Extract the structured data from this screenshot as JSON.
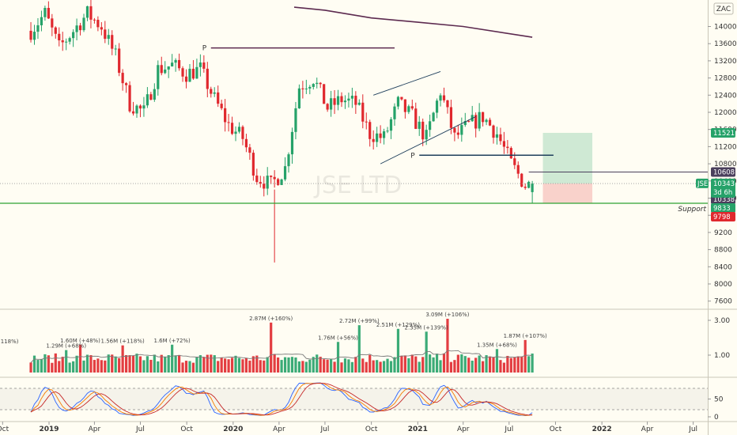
{
  "chart_data": {
    "type": "candlestick",
    "watermark": "JSE LTD",
    "corner_label": "ZAC",
    "y_axis": {
      "ticks": [
        7600,
        8000,
        8400,
        8800,
        9200,
        9600,
        10000,
        10400,
        10800,
        11200,
        11600,
        12000,
        12400,
        12800,
        13200,
        13600,
        14000
      ],
      "range": [
        7300,
        14400
      ]
    },
    "x_axis": {
      "ticks": [
        {
          "label": "Oct",
          "date": "2018-10-01"
        },
        {
          "label": "2019",
          "date": "2019-01-01"
        },
        {
          "label": "Apr",
          "date": "2019-04-01"
        },
        {
          "label": "Jul",
          "date": "2019-07-01"
        },
        {
          "label": "Oct",
          "date": "2019-10-01"
        },
        {
          "label": "2020",
          "date": "2020-01-01"
        },
        {
          "label": "Apr",
          "date": "2020-04-01"
        },
        {
          "label": "Jul",
          "date": "2020-07-01"
        },
        {
          "label": "Oct",
          "date": "2020-10-01"
        },
        {
          "label": "2021",
          "date": "2021-01-01"
        },
        {
          "label": "Apr",
          "date": "2021-04-01"
        },
        {
          "label": "Jul",
          "date": "2021-07-01"
        },
        {
          "label": "Oct",
          "date": "2021-10-01"
        },
        {
          "label": "2022",
          "date": "2022-01-01"
        },
        {
          "label": "Apr",
          "date": "2022-04-01"
        },
        {
          "label": "Jul",
          "date": "2022-07-01"
        }
      ]
    },
    "candle_path": [
      {
        "date": "2018-11-26",
        "close": 13900
      },
      {
        "date": "2018-12-24",
        "close": 14300
      },
      {
        "date": "2019-01-21",
        "close": 13500
      },
      {
        "date": "2019-02-18",
        "close": 13900
      },
      {
        "date": "2019-03-18",
        "close": 14300
      },
      {
        "date": "2019-04-15",
        "close": 14000
      },
      {
        "date": "2019-05-13",
        "close": 13300
      },
      {
        "date": "2019-06-10",
        "close": 12200
      },
      {
        "date": "2019-07-08",
        "close": 12000
      },
      {
        "date": "2019-08-05",
        "close": 13000
      },
      {
        "date": "2019-09-02",
        "close": 13100
      },
      {
        "date": "2019-09-30",
        "close": 12900
      },
      {
        "date": "2019-10-28",
        "close": 13000
      },
      {
        "date": "2019-11-25",
        "close": 12300
      },
      {
        "date": "2019-12-23",
        "close": 11700
      },
      {
        "date": "2020-01-20",
        "close": 11400
      },
      {
        "date": "2020-02-17",
        "close": 10500
      },
      {
        "date": "2020-03-16",
        "close": 10300
      },
      {
        "date": "2020-04-13",
        "close": 10700
      },
      {
        "date": "2020-05-11",
        "close": 12600
      },
      {
        "date": "2020-06-08",
        "close": 12800
      },
      {
        "date": "2020-07-06",
        "close": 12100
      },
      {
        "date": "2020-08-03",
        "close": 12300
      },
      {
        "date": "2020-08-31",
        "close": 12200
      },
      {
        "date": "2020-09-28",
        "close": 11500
      },
      {
        "date": "2020-10-26",
        "close": 11400
      },
      {
        "date": "2020-11-23",
        "close": 12200
      },
      {
        "date": "2020-12-21",
        "close": 11900
      },
      {
        "date": "2021-01-18",
        "close": 11400
      },
      {
        "date": "2021-02-15",
        "close": 12500
      },
      {
        "date": "2021-03-15",
        "close": 11400
      },
      {
        "date": "2021-04-12",
        "close": 11700
      },
      {
        "date": "2021-05-10",
        "close": 11900
      },
      {
        "date": "2021-06-07",
        "close": 11500
      },
      {
        "date": "2021-07-05",
        "close": 10800
      },
      {
        "date": "2021-08-02",
        "close": 10300
      },
      {
        "date": "2021-08-16",
        "close": 10340
      }
    ],
    "volume_axis": {
      "ticks": [
        "1.00",
        "3.00"
      ]
    },
    "volume_annotations": [
      {
        "label": "(+118%)",
        "date": "2018-10-08"
      },
      {
        "label": "1.29M (+68%)",
        "date": "2019-02-04"
      },
      {
        "label": "1.60M (+48%)",
        "date": "2019-03-04"
      },
      {
        "label": "1.56M (+118%)",
        "date": "2019-05-27"
      },
      {
        "label": "1.6M (+72%)",
        "date": "2019-09-02"
      },
      {
        "label": "2.87M (+160%)",
        "date": "2020-03-16"
      },
      {
        "label": "1.76M (+56%)",
        "date": "2020-07-27"
      },
      {
        "label": "2.72M (+99%)",
        "date": "2020-09-07"
      },
      {
        "label": "2.51M (+129%)",
        "date": "2020-11-23"
      },
      {
        "label": "2.35M (+139%)",
        "date": "2021-01-18"
      },
      {
        "label": "3.09M (+106%)",
        "date": "2021-03-01"
      },
      {
        "label": "1.35M (+68%)",
        "date": "2021-06-07"
      },
      {
        "label": "1.87M (+107%)",
        "date": "2021-08-02"
      }
    ],
    "stoch_axis": {
      "ticks": [
        "0",
        "50"
      ],
      "bands": [
        20,
        80
      ]
    },
    "drawings": {
      "p_label": "P",
      "support_label": "Support",
      "support_level": 9880,
      "level_p1": 13500,
      "level_p2": 11000,
      "target_zone": [
        10340,
        11521
      ],
      "stop_zone": [
        9880,
        10340
      ]
    },
    "price_tags": [
      {
        "text": "11521",
        "value": 11521,
        "color": "#26a269"
      },
      {
        "text": "10608",
        "value": 10608,
        "color": "#4a3f5c"
      },
      {
        "text": "10338",
        "value": 10338,
        "color": "#4a3f5c"
      },
      {
        "text": "9833",
        "value": 9833,
        "color": "#26a269"
      },
      {
        "text": "9798",
        "value": 9798,
        "color": "#e0282e"
      }
    ],
    "symbol_tag": {
      "symbol": "JSE",
      "price": "10343",
      "countdown": "3d 6h"
    },
    "colors": {
      "up": "#26a269",
      "down": "#e0282e",
      "ma": "#5c2a4f",
      "support": "#2fa233",
      "structure": "#1f3f5c"
    }
  }
}
